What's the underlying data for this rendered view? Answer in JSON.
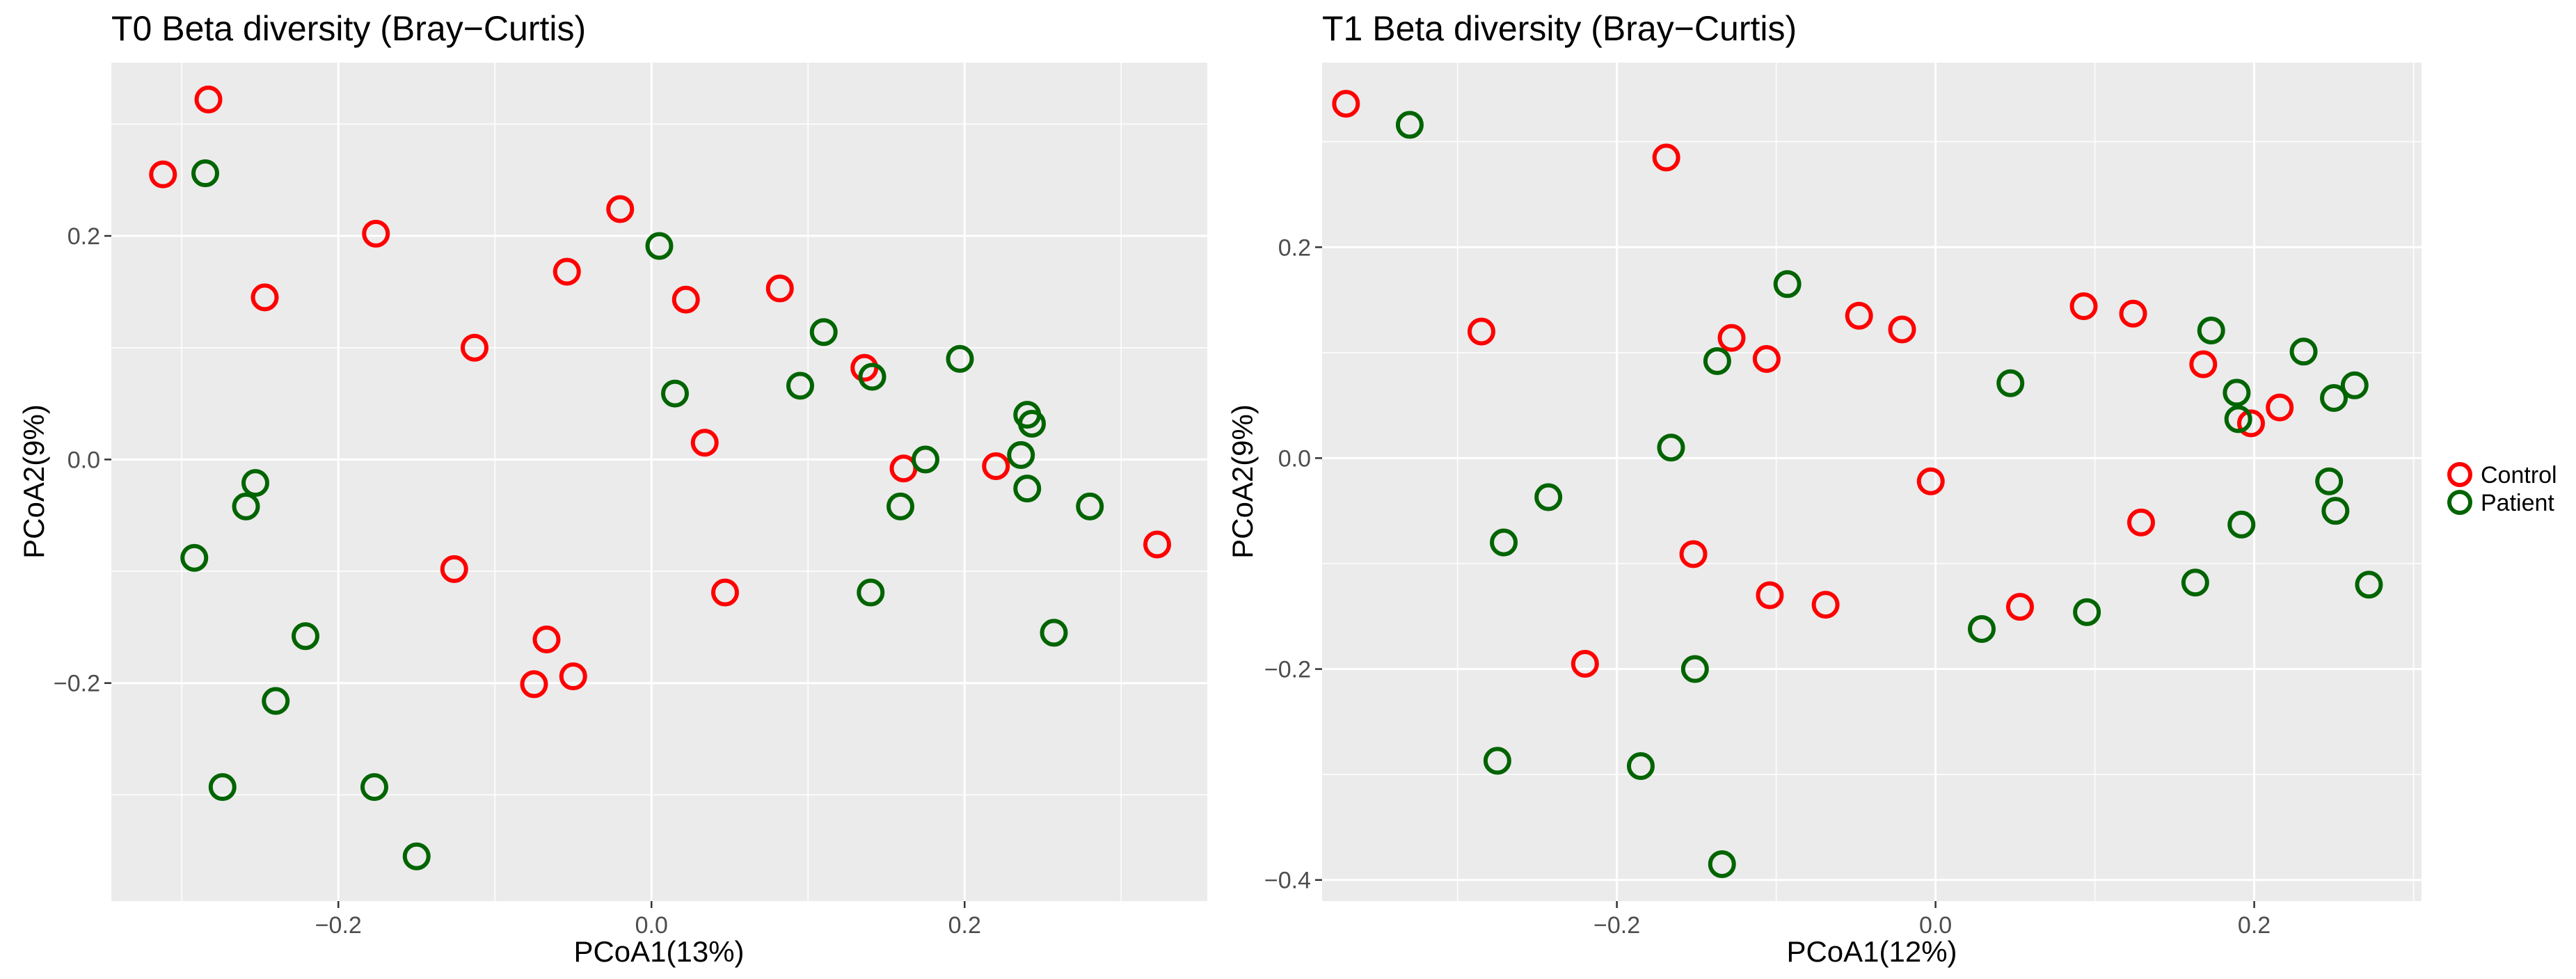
{
  "chart_data": [
    {
      "type": "scatter",
      "title": "T0 Beta diversity (Bray−Curtis)",
      "xlabel": "PCoA1(13%)",
      "ylabel": "PCoA2(9%)",
      "xlim": [
        -0.345,
        0.355
      ],
      "ylim": [
        -0.395,
        0.355
      ],
      "xticks": [
        -0.2,
        0.0,
        0.2
      ],
      "xtick_labels": [
        "−0.2",
        "0.0",
        "0.2"
      ],
      "yticks": [
        -0.2,
        0.0,
        0.2
      ],
      "ytick_labels": [
        "−0.2",
        "0.0",
        "0.2"
      ],
      "grid": true,
      "series": [
        {
          "name": "Control",
          "points": [
            [
              -0.312,
              0.255
            ],
            [
              -0.283,
              0.322
            ],
            [
              -0.247,
              0.145
            ],
            [
              -0.176,
              0.202
            ],
            [
              -0.113,
              0.1
            ],
            [
              -0.126,
              -0.098
            ],
            [
              -0.054,
              0.168
            ],
            [
              -0.02,
              0.224
            ],
            [
              0.022,
              0.143
            ],
            [
              0.082,
              0.153
            ],
            [
              0.034,
              0.015
            ],
            [
              0.047,
              -0.119
            ],
            [
              0.136,
              0.082
            ],
            [
              0.161,
              -0.008
            ],
            [
              0.22,
              -0.006
            ],
            [
              0.323,
              -0.076
            ],
            [
              -0.067,
              -0.161
            ],
            [
              -0.075,
              -0.201
            ],
            [
              -0.05,
              -0.194
            ]
          ]
        },
        {
          "name": "Patient",
          "points": [
            [
              -0.285,
              0.256
            ],
            [
              -0.292,
              -0.088
            ],
            [
              -0.259,
              -0.042
            ],
            [
              -0.253,
              -0.021
            ],
            [
              -0.221,
              -0.158
            ],
            [
              -0.24,
              -0.216
            ],
            [
              -0.274,
              -0.293
            ],
            [
              -0.177,
              -0.293
            ],
            [
              -0.15,
              -0.355
            ],
            [
              0.005,
              0.191
            ],
            [
              0.015,
              0.059
            ],
            [
              0.095,
              0.066
            ],
            [
              0.11,
              0.114
            ],
            [
              0.141,
              0.074
            ],
            [
              0.197,
              0.09
            ],
            [
              0.175,
              0.0
            ],
            [
              0.159,
              -0.042
            ],
            [
              0.14,
              -0.119
            ],
            [
              0.24,
              0.04
            ],
            [
              0.243,
              0.032
            ],
            [
              0.236,
              0.004
            ],
            [
              0.24,
              -0.026
            ],
            [
              0.28,
              -0.042
            ],
            [
              0.257,
              -0.155
            ]
          ]
        }
      ]
    },
    {
      "type": "scatter",
      "title": "T1 Beta diversity (Bray−Curtis)",
      "xlabel": "PCoA1(12%)",
      "ylabel": "PCoA2(9%)",
      "xlim": [
        -0.385,
        0.305
      ],
      "ylim": [
        -0.42,
        0.375
      ],
      "xticks": [
        -0.2,
        0.0,
        0.2
      ],
      "xtick_labels": [
        "−0.2",
        "0.0",
        "0.2"
      ],
      "yticks": [
        -0.4,
        -0.2,
        0.0,
        0.2
      ],
      "ytick_labels": [
        "−0.4",
        "−0.2",
        "0.0",
        "0.2"
      ],
      "grid": true,
      "series": [
        {
          "name": "Control",
          "points": [
            [
              -0.37,
              0.336
            ],
            [
              -0.169,
              0.285
            ],
            [
              -0.285,
              0.12
            ],
            [
              -0.22,
              -0.195
            ],
            [
              -0.128,
              0.114
            ],
            [
              -0.106,
              0.094
            ],
            [
              -0.152,
              -0.091
            ],
            [
              -0.104,
              -0.13
            ],
            [
              -0.069,
              -0.139
            ],
            [
              -0.048,
              0.135
            ],
            [
              -0.021,
              0.122
            ],
            [
              -0.003,
              -0.022
            ],
            [
              0.053,
              -0.141
            ],
            [
              0.093,
              0.144
            ],
            [
              0.124,
              0.137
            ],
            [
              0.129,
              -0.061
            ],
            [
              0.168,
              0.089
            ],
            [
              0.198,
              0.033
            ],
            [
              0.216,
              0.048
            ]
          ]
        },
        {
          "name": "Patient",
          "points": [
            [
              -0.33,
              0.316
            ],
            [
              -0.271,
              -0.08
            ],
            [
              -0.243,
              -0.037
            ],
            [
              -0.275,
              -0.287
            ],
            [
              -0.185,
              -0.292
            ],
            [
              -0.166,
              0.01
            ],
            [
              -0.137,
              0.092
            ],
            [
              -0.151,
              -0.2
            ],
            [
              -0.134,
              -0.385
            ],
            [
              -0.093,
              0.165
            ],
            [
              0.029,
              -0.162
            ],
            [
              0.047,
              0.071
            ],
            [
              0.095,
              -0.146
            ],
            [
              0.163,
              -0.118
            ],
            [
              0.173,
              0.121
            ],
            [
              0.189,
              0.062
            ],
            [
              0.19,
              0.037
            ],
            [
              0.192,
              -0.063
            ],
            [
              0.231,
              0.101
            ],
            [
              0.247,
              -0.022
            ],
            [
              0.25,
              0.057
            ],
            [
              0.251,
              -0.05
            ],
            [
              0.263,
              0.069
            ],
            [
              0.272,
              -0.12
            ]
          ]
        }
      ]
    }
  ],
  "legend": {
    "position": "right",
    "items": [
      {
        "name": "Control",
        "color": "#ff0000"
      },
      {
        "name": "Patient",
        "color": "#006400"
      }
    ]
  },
  "colors": {
    "panel_background": "#ebebeb",
    "grid": "#ffffff",
    "Control": "#ff0000",
    "Patient": "#006400"
  }
}
